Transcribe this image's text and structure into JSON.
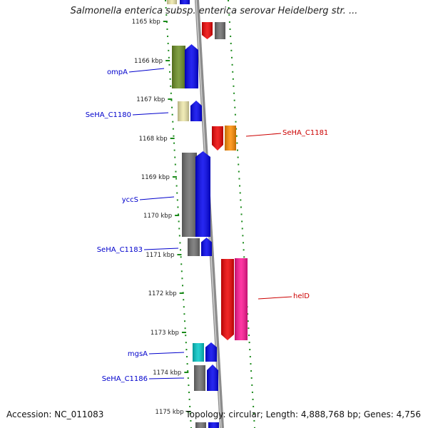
{
  "title": "Salmonella enterica subsp. enterica serovar Heidelberg str. ...",
  "footer": {
    "accession": "Accession: NC_011083",
    "topology": "Topology: circular; Length: 4,888,768 bp; Genes: 4,756"
  },
  "ticks": [
    {
      "label": "1165 kbp"
    },
    {
      "label": "1166 kbp"
    },
    {
      "label": "1167 kbp"
    },
    {
      "label": "1168 kbp"
    },
    {
      "label": "1169 kbp"
    },
    {
      "label": "1170 kbp"
    },
    {
      "label": "1171 kbp"
    },
    {
      "label": "1172 kbp"
    },
    {
      "label": "1173 kbp"
    },
    {
      "label": "1174 kbp"
    },
    {
      "label": "1175 kbp"
    }
  ],
  "genes": [
    {
      "label": "ompA",
      "strand": "minus",
      "label_color": "#0000cc"
    },
    {
      "label": "SeHA_C1180",
      "strand": "minus",
      "label_color": "#0000cc"
    },
    {
      "label": "SeHA_C1181",
      "strand": "plus",
      "label_color": "#cc0000"
    },
    {
      "label": "yccS",
      "strand": "minus",
      "label_color": "#0000cc"
    },
    {
      "label": "SeHA_C1183",
      "strand": "minus",
      "label_color": "#0000cc"
    },
    {
      "label": "helD",
      "strand": "plus",
      "label_color": "#cc0000"
    },
    {
      "label": "mgsA",
      "strand": "minus",
      "label_color": "#0000cc"
    },
    {
      "label": "SeHA_C1186",
      "strand": "minus",
      "label_color": "#0000cc"
    }
  ],
  "colors": {
    "backbone": "#8c8c8c",
    "minus_strand": "#0000ee",
    "plus_strand": "#ee0000",
    "gray_gene": "#6e6e6e",
    "olive_gene": "#6b8e23",
    "khaki_gene": "#eee8aa",
    "orange_gene": "#ff8c00",
    "pink_gene": "#ff1493",
    "cyan_gene": "#00c8c8",
    "dotted_track": "#1a8a1a"
  }
}
